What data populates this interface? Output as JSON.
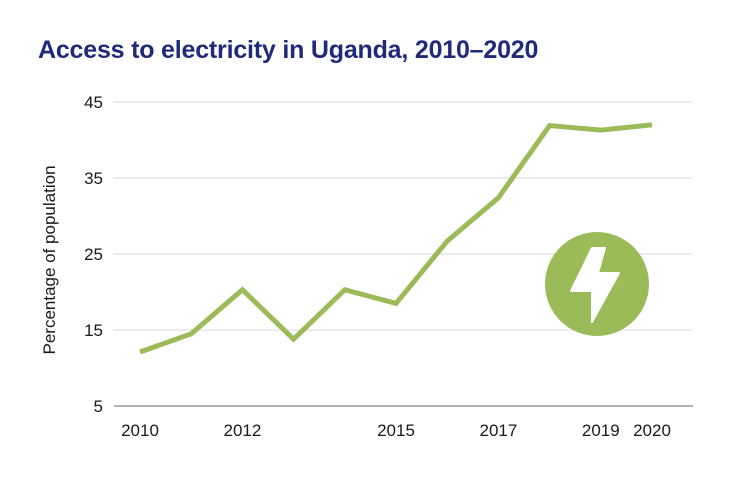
{
  "chart_data": {
    "type": "line",
    "title": "Access to electricity in Uganda, 2010–2020",
    "xlabel": "",
    "ylabel": "Percentage of population",
    "x": [
      2010,
      2011,
      2012,
      2013,
      2014,
      2015,
      2016,
      2017,
      2018,
      2019,
      2020
    ],
    "x_tick_labels": [
      "2010",
      "2012",
      "2015",
      "2017",
      "2019",
      "2020"
    ],
    "y_ticks": [
      5,
      15,
      25,
      35,
      45
    ],
    "ylim": [
      5,
      45
    ],
    "series": [
      {
        "values": [
          12.1,
          14.5,
          20.3,
          13.8,
          20.3,
          18.5,
          26.7,
          32.4,
          41.9,
          41.3,
          42.0
        ]
      }
    ],
    "grid": "horizontal",
    "line_color": "#9bbb59",
    "axis_color": "#9a9a9a",
    "icon": {
      "name": "lightning-bolt-icon",
      "color": "#9bbb59"
    }
  }
}
